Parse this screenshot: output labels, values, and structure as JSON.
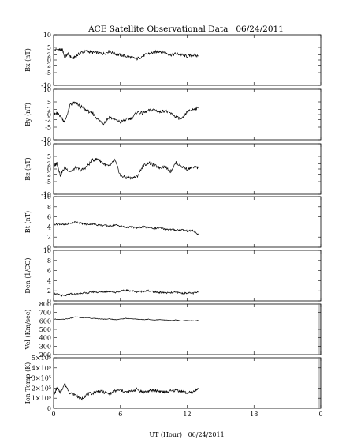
{
  "chart_data": {
    "type": "line",
    "title": "ACE Satellite Observational Data   06/24/2011",
    "xlabel": "UT (Hour)   06/24/2011",
    "x_range": [
      0,
      24
    ],
    "x_ticks": [
      "0",
      "6",
      "12",
      "18",
      "0"
    ],
    "data_end_hour": 13.0,
    "panels": [
      {
        "name": "Bx",
        "ylabel": "Bx (nT)",
        "ylim": [
          -10,
          10
        ],
        "yticks": [
          "10",
          "5",
          "2",
          "0",
          "-2",
          "-5",
          "-10"
        ],
        "ytick_values": [
          10,
          5,
          2,
          0,
          -2,
          -5,
          -10
        ],
        "series": [
          {
            "x": [
              0,
              0.5,
              0.8,
              1.0,
              1.3,
              1.7,
              2.0,
              2.5,
              3.0,
              3.5,
              4.0,
              4.5,
              5.0,
              5.5,
              6.0,
              6.5,
              7.0,
              7.5,
              8.0,
              8.5,
              9.0,
              9.5,
              10.0,
              10.5,
              11.0,
              11.5,
              12.0,
              12.5,
              13.0
            ],
            "y": [
              4.0,
              4.2,
              4.0,
              1.0,
              2.5,
              0.5,
              1.5,
              3.0,
              3.5,
              3.0,
              2.8,
              2.5,
              3.5,
              2.5,
              2.0,
              1.5,
              1.0,
              0.5,
              1.5,
              2.5,
              3.0,
              3.5,
              3.0,
              2.0,
              2.5,
              2.0,
              1.5,
              2.0,
              1.5
            ]
          }
        ]
      },
      {
        "name": "By",
        "ylabel": "By (nT)",
        "ylim": [
          -10,
          10
        ],
        "yticks": [
          "10",
          "5",
          "2",
          "0",
          "-2",
          "-5",
          "-10"
        ],
        "ytick_values": [
          10,
          5,
          2,
          0,
          -2,
          -5,
          -10
        ],
        "series": [
          {
            "x": [
              0,
              0.3,
              0.6,
              1.0,
              1.5,
              1.8,
              2.0,
              2.5,
              3.0,
              3.5,
              4.0,
              4.5,
              5.0,
              5.5,
              6.0,
              6.5,
              7.0,
              7.5,
              8.0,
              8.5,
              9.0,
              9.5,
              10.0,
              10.5,
              11.0,
              11.5,
              12.0,
              12.5,
              13.0
            ],
            "y": [
              0.0,
              0.5,
              -0.5,
              -3.0,
              4.0,
              4.5,
              4.5,
              3.0,
              1.5,
              0.5,
              -2.0,
              -3.5,
              -1.0,
              -2.0,
              -3.0,
              -2.0,
              -1.5,
              1.0,
              0.5,
              1.5,
              2.0,
              1.0,
              1.5,
              0.5,
              -1.0,
              -2.0,
              1.0,
              2.0,
              2.5
            ]
          }
        ]
      },
      {
        "name": "Bz",
        "ylabel": "Bz (nT)",
        "ylim": [
          -10,
          10
        ],
        "yticks": [
          "10",
          "5",
          "2",
          "0",
          "-2",
          "-5",
          "-10"
        ],
        "ytick_values": [
          10,
          5,
          2,
          0,
          -2,
          -5,
          -10
        ],
        "series": [
          {
            "x": [
              0,
              0.3,
              0.6,
              1.0,
              1.5,
              2.0,
              2.5,
              3.0,
              3.5,
              4.0,
              4.5,
              5.0,
              5.5,
              6.0,
              6.5,
              7.0,
              7.5,
              8.0,
              8.5,
              9.0,
              9.5,
              10.0,
              10.5,
              11.0,
              11.5,
              12.0,
              12.5,
              13.0
            ],
            "y": [
              0.5,
              2.5,
              -2.5,
              0.5,
              -1.0,
              0.5,
              -0.5,
              1.0,
              3.5,
              4.0,
              2.0,
              1.0,
              3.5,
              -2.5,
              -3.5,
              -3.5,
              -3.0,
              1.0,
              2.5,
              1.5,
              0.5,
              1.0,
              -1.0,
              2.5,
              1.0,
              0.0,
              0.5,
              0.5
            ]
          }
        ]
      },
      {
        "name": "Bt",
        "ylabel": "Bt (nT)",
        "ylim": [
          0,
          10
        ],
        "yticks": [
          "10",
          "8",
          "6",
          "4",
          "2",
          "0"
        ],
        "ytick_values": [
          10,
          8,
          6,
          4,
          2,
          0
        ],
        "series": [
          {
            "x": [
              0,
              0.5,
              1.0,
              1.5,
              2.0,
              2.5,
              3.0,
              3.5,
              4.0,
              4.5,
              5.0,
              5.5,
              6.0,
              6.5,
              7.0,
              7.5,
              8.0,
              8.5,
              9.0,
              9.5,
              10.0,
              10.5,
              11.0,
              11.5,
              12.0,
              12.5,
              13.0
            ],
            "y": [
              4.5,
              4.6,
              4.4,
              4.7,
              5.0,
              4.7,
              4.5,
              4.6,
              4.4,
              4.3,
              4.2,
              4.4,
              4.2,
              3.9,
              4.0,
              3.8,
              4.0,
              3.9,
              3.7,
              3.8,
              3.6,
              3.5,
              3.4,
              3.5,
              3.2,
              3.3,
              2.5
            ]
          }
        ]
      },
      {
        "name": "Den",
        "ylabel": "Den (1/CC)",
        "ylim": [
          0,
          10
        ],
        "yticks": [
          "10",
          "8",
          "6",
          "4",
          "2",
          "0"
        ],
        "ytick_values": [
          10,
          8,
          6,
          4,
          2,
          0
        ],
        "series": [
          {
            "x": [
              0,
              0.5,
              1.0,
              1.5,
              2.0,
              2.5,
              3.0,
              3.5,
              4.0,
              4.5,
              5.0,
              5.5,
              6.0,
              6.5,
              7.0,
              7.5,
              8.0,
              8.5,
              9.0,
              9.5,
              10.0,
              10.5,
              11.0,
              11.5,
              12.0,
              12.5,
              13.0
            ],
            "y": [
              1.5,
              1.2,
              1.0,
              1.4,
              1.3,
              1.6,
              1.5,
              1.8,
              1.7,
              1.8,
              1.9,
              1.7,
              1.9,
              2.1,
              2.0,
              1.8,
              1.9,
              2.0,
              1.8,
              1.7,
              1.6,
              1.6,
              1.7,
              1.5,
              1.6,
              1.5,
              1.7
            ]
          }
        ]
      },
      {
        "name": "Vel",
        "ylabel": "Vel (Km/sec)",
        "ylim": [
          200,
          800
        ],
        "yticks": [
          "800",
          "700",
          "600",
          "500",
          "400",
          "300",
          "200"
        ],
        "ytick_values": [
          800,
          700,
          600,
          500,
          400,
          300,
          200
        ],
        "series": [
          {
            "x": [
              0,
              0.5,
              1.0,
              1.5,
              2.0,
              2.5,
              3.0,
              3.5,
              4.0,
              4.5,
              5.0,
              5.5,
              6.0,
              6.5,
              7.0,
              7.5,
              8.0,
              8.5,
              9.0,
              9.5,
              10.0,
              10.5,
              11.0,
              11.5,
              12.0,
              12.5,
              13.0
            ],
            "y": [
              625,
              615,
              620,
              630,
              650,
              635,
              640,
              630,
              625,
              620,
              625,
              615,
              620,
              630,
              625,
              620,
              615,
              620,
              610,
              615,
              610,
              605,
              610,
              600,
              605,
              600,
              605
            ]
          }
        ]
      },
      {
        "name": "Ion Temp",
        "ylabel": "Ion Temp (K)",
        "ylim": [
          0,
          500000
        ],
        "yticks": [
          "5×10⁵",
          "4×10⁵",
          "3×10⁵",
          "2×10⁵",
          "1×10⁵",
          "0"
        ],
        "ytick_values": [
          500000,
          400000,
          300000,
          200000,
          100000,
          0
        ],
        "series": [
          {
            "x": [
              0,
              0.3,
              0.6,
              1.0,
              1.5,
              2.0,
              2.5,
              3.0,
              3.5,
              4.0,
              4.5,
              5.0,
              5.5,
              6.0,
              6.5,
              7.0,
              7.5,
              8.0,
              8.5,
              9.0,
              9.5,
              10.0,
              10.5,
              11.0,
              11.5,
              12.0,
              12.5,
              13.0
            ],
            "y": [
              120000,
              200000,
              160000,
              240000,
              150000,
              130000,
              90000,
              140000,
              150000,
              170000,
              160000,
              140000,
              170000,
              180000,
              160000,
              170000,
              190000,
              160000,
              170000,
              180000,
              170000,
              160000,
              170000,
              180000,
              170000,
              150000,
              160000,
              200000
            ]
          }
        ]
      }
    ]
  }
}
